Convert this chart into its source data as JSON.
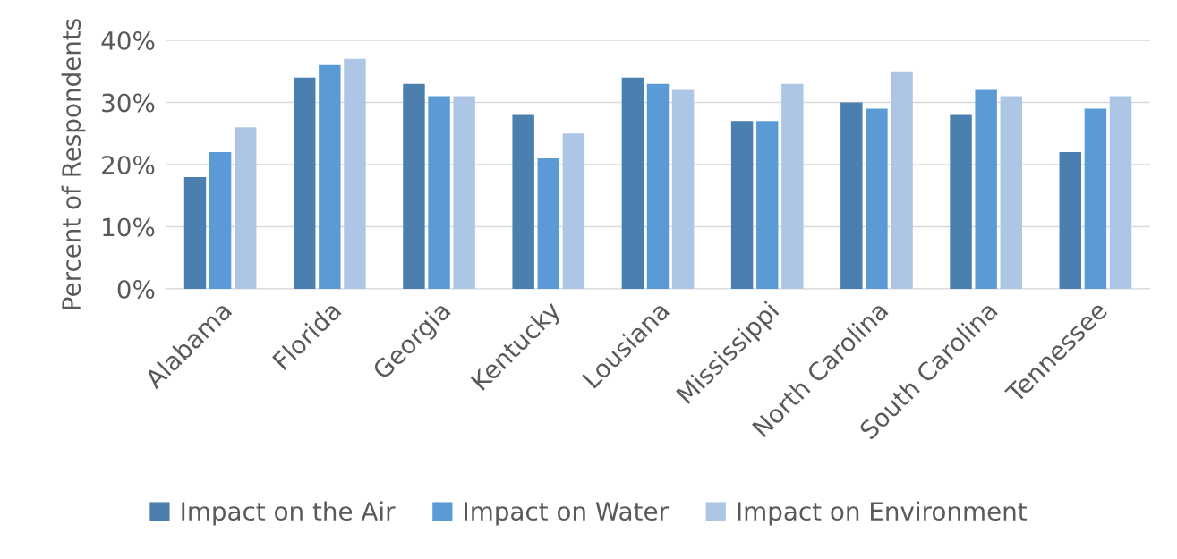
{
  "chart_data": {
    "type": "bar",
    "ylabel": "Percent of Respondents",
    "categories": [
      "Alabama",
      "Florida",
      "Georgia",
      "Kentucky",
      "Lousiana",
      "Mississippi",
      "North Carolina",
      "South Carolina",
      "Tennessee"
    ],
    "series": [
      {
        "name": "Impact on the Air",
        "color": "#4a7fb0",
        "values": [
          18,
          34,
          33,
          28,
          34,
          27,
          30,
          28,
          22
        ]
      },
      {
        "name": "Impact on Water",
        "color": "#5b9bd5",
        "values": [
          22,
          36,
          31,
          21,
          33,
          27,
          29,
          32,
          29
        ]
      },
      {
        "name": "Impact on Environment",
        "color": "#aec6e6",
        "values": [
          26,
          37,
          31,
          25,
          32,
          33,
          35,
          31,
          31
        ]
      }
    ],
    "ylim": [
      0,
      40
    ],
    "yticks": [
      {
        "value": 0,
        "label": "0%"
      },
      {
        "value": 10,
        "label": "10%"
      },
      {
        "value": 20,
        "label": "20%"
      },
      {
        "value": 30,
        "label": "30%"
      },
      {
        "value": 40,
        "label": "40%"
      }
    ],
    "grid": "y",
    "legend": "bottom"
  }
}
